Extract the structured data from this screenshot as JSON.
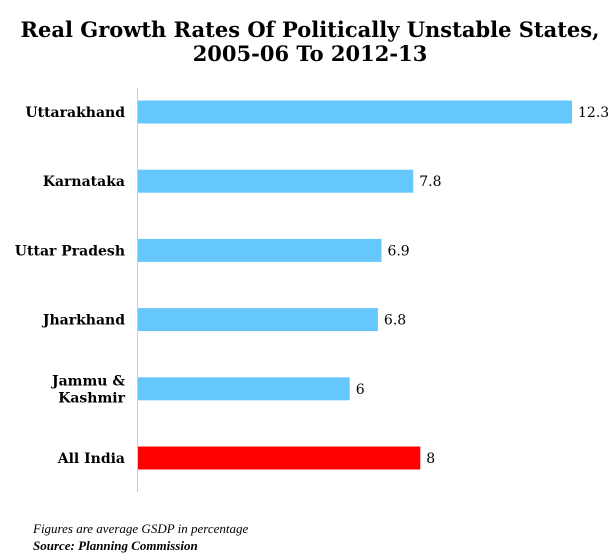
{
  "chart_data": {
    "type": "bar",
    "orientation": "horizontal",
    "title_lines": [
      "Real Growth Rates Of Politically Unstable States,",
      "2005-06 To 2012-13"
    ],
    "categories": [
      "Uttarakhand",
      "Karnataka",
      "Uttar Pradesh",
      "Jharkhand",
      "Jammu & Kashmir",
      "All India"
    ],
    "category_label_lines": [
      [
        "Uttarakhand"
      ],
      [
        "Karnataka"
      ],
      [
        "Uttar Pradesh"
      ],
      [
        "Jharkhand"
      ],
      [
        "Jammu &",
        "Kashmir"
      ],
      [
        "All India"
      ]
    ],
    "values": [
      12.3,
      7.8,
      6.9,
      6.8,
      6,
      8
    ],
    "value_labels": [
      "12.3",
      "7.8",
      "6.9",
      "6.8",
      "6",
      "8"
    ],
    "bar_colors": [
      "#66c7fd",
      "#66c7fd",
      "#66c7fd",
      "#66c7fd",
      "#66c7fd",
      "#ff0000"
    ],
    "xlim": [
      0,
      12.3
    ],
    "grid": false,
    "axis_color": "#cccccc",
    "footnote": "Figures are average GSDP in percentage",
    "source": "Source: Planning Commission"
  }
}
